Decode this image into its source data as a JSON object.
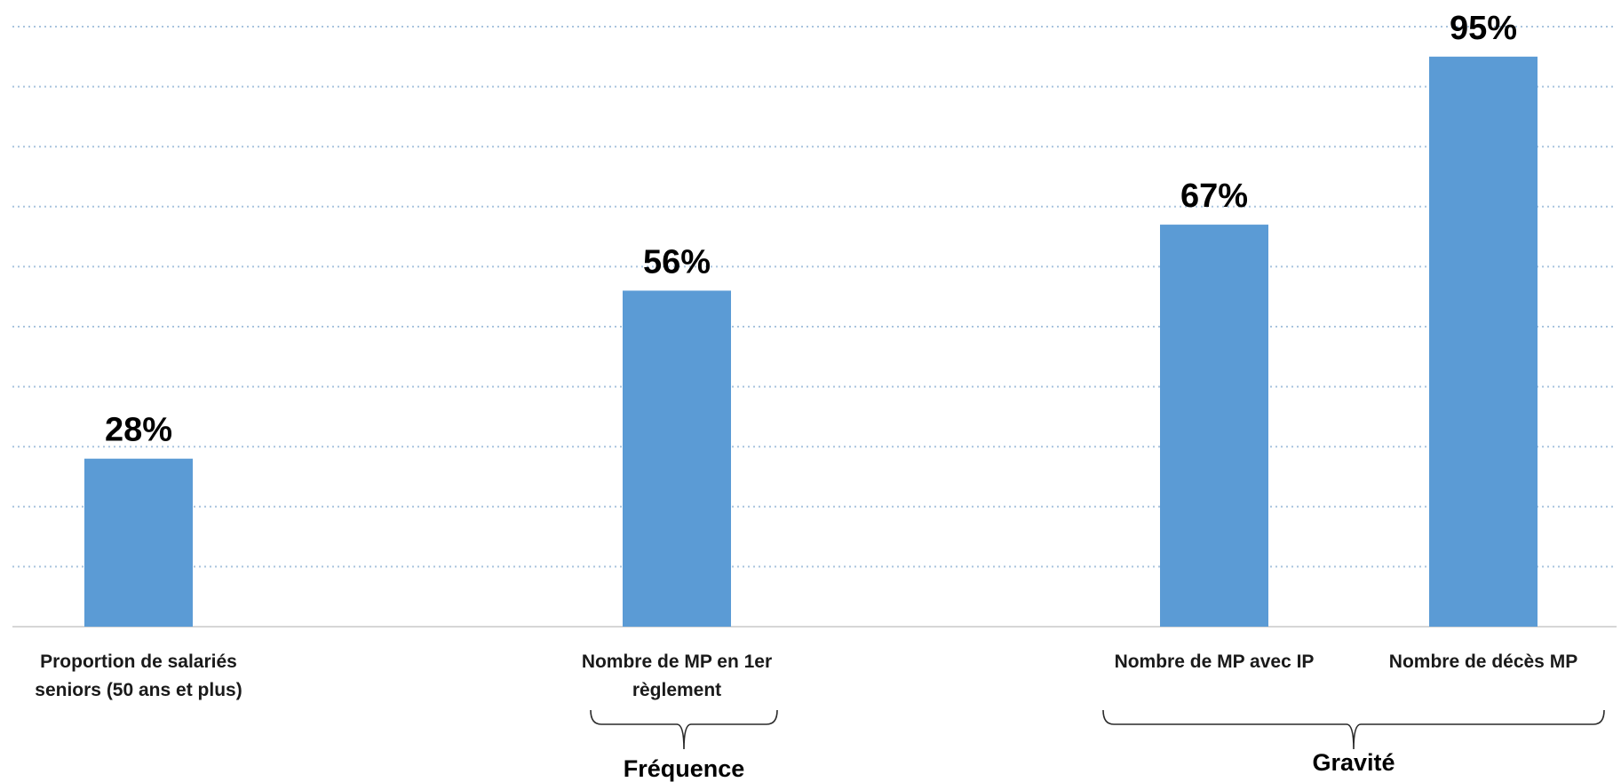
{
  "chart_data": {
    "type": "bar",
    "categories": [
      [
        "Proportion de salariés",
        "seniors (50 ans et plus)"
      ],
      [
        "Nombre de MP en 1er",
        "règlement"
      ],
      [
        "Nombre de MP avec IP"
      ],
      [
        "Nombre de décès MP"
      ]
    ],
    "values": [
      28,
      56,
      67,
      95
    ],
    "data_labels": [
      "28%",
      "56%",
      "67%",
      "95%"
    ],
    "ylim": [
      0,
      100
    ],
    "grid": true,
    "groups": [
      {
        "label": "Fréquence",
        "members": [
          1
        ]
      },
      {
        "label": "Gravité",
        "members": [
          2,
          3
        ]
      }
    ],
    "colors": {
      "bar": "#5b9bd5"
    }
  }
}
